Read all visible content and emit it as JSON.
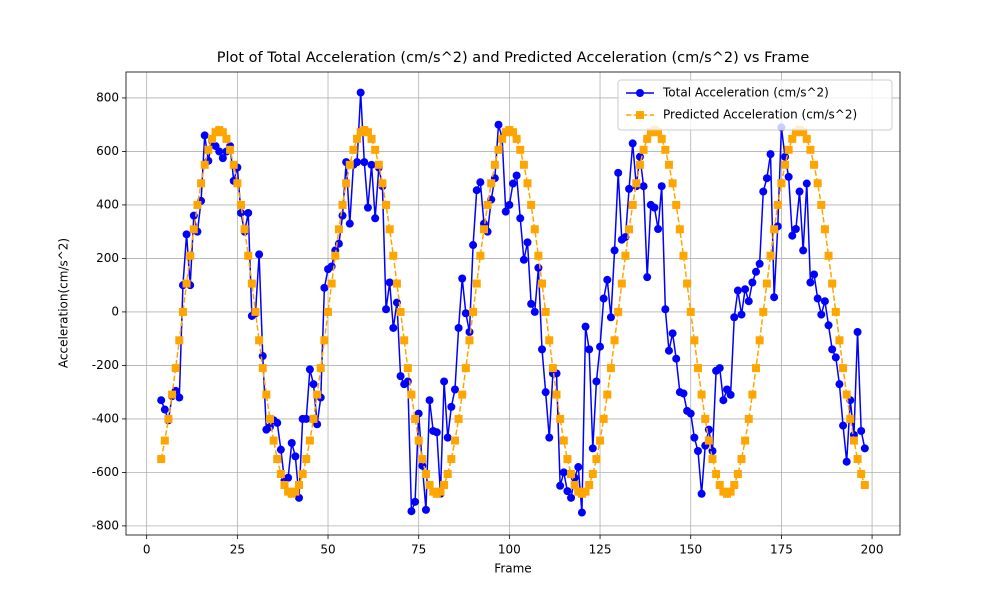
{
  "chart_data": {
    "type": "line",
    "title": "Plot of Total Acceleration (cm/s^2) and Predicted Acceleration (cm/s^2) vs Frame",
    "x_label": "Frame",
    "y_label": "Acceleration(cm/s^2)",
    "x": [
      4,
      5,
      6,
      7,
      8,
      9,
      10,
      11,
      12,
      13,
      14,
      15,
      16,
      17,
      18,
      19,
      20,
      21,
      22,
      23,
      24,
      25,
      26,
      27,
      28,
      29,
      30,
      31,
      32,
      33,
      34,
      35,
      36,
      37,
      38,
      39,
      40,
      41,
      42,
      43,
      44,
      45,
      46,
      47,
      48,
      49,
      50,
      51,
      52,
      53,
      54,
      55,
      56,
      57,
      58,
      59,
      60,
      61,
      62,
      63,
      64,
      65,
      66,
      67,
      68,
      69,
      70,
      71,
      72,
      73,
      74,
      75,
      76,
      77,
      78,
      79,
      80,
      81,
      82,
      83,
      84,
      85,
      86,
      87,
      88,
      89,
      90,
      91,
      92,
      93,
      94,
      95,
      96,
      97,
      98,
      99,
      100,
      101,
      102,
      103,
      104,
      105,
      106,
      107,
      108,
      109,
      110,
      111,
      112,
      113,
      114,
      115,
      116,
      117,
      118,
      119,
      120,
      121,
      122,
      123,
      124,
      125,
      126,
      127,
      128,
      129,
      130,
      131,
      132,
      133,
      134,
      135,
      136,
      137,
      138,
      139,
      140,
      141,
      142,
      143,
      144,
      145,
      146,
      147,
      148,
      149,
      150,
      151,
      152,
      153,
      154,
      155,
      156,
      157,
      158,
      159,
      160,
      161,
      162,
      163,
      164,
      165,
      166,
      167,
      168,
      169,
      170,
      171,
      172,
      173,
      174,
      175,
      176,
      177,
      178,
      179,
      180,
      181,
      182,
      183,
      184,
      185,
      186,
      187,
      188,
      189,
      190,
      191,
      192,
      193,
      194,
      195,
      196,
      197,
      198
    ],
    "series": [
      {
        "name": "Total Acceleration (cm/s^2)",
        "color": "#0000ff",
        "linestyle": "solid",
        "marker": "circle",
        "values": [
          -330,
          -365,
          -405,
          -315,
          -295,
          -320,
          100,
          290,
          100,
          360,
          300,
          415,
          660,
          565,
          640,
          620,
          600,
          575,
          600,
          620,
          490,
          540,
          370,
          300,
          370,
          -15,
          -5,
          215,
          -165,
          -440,
          -430,
          -405,
          -415,
          -515,
          -630,
          -620,
          -490,
          -540,
          -695,
          -400,
          -400,
          -215,
          -270,
          -420,
          -320,
          90,
          160,
          170,
          230,
          255,
          360,
          560,
          330,
          550,
          560,
          820,
          560,
          390,
          550,
          350,
          540,
          470,
          10,
          110,
          -60,
          35,
          -240,
          -270,
          -260,
          -745,
          -710,
          -380,
          -575,
          -740,
          -330,
          -445,
          -450,
          -680,
          -260,
          -470,
          -355,
          -290,
          -60,
          125,
          -5,
          -75,
          250,
          455,
          485,
          330,
          300,
          420,
          500,
          700,
          650,
          375,
          400,
          480,
          510,
          350,
          195,
          260,
          30,
          0,
          165,
          -140,
          -300,
          -470,
          -230,
          -230,
          -650,
          -600,
          -670,
          -695,
          -620,
          -580,
          -750,
          -55,
          -140,
          -510,
          -260,
          -130,
          50,
          120,
          -20,
          230,
          520,
          270,
          280,
          460,
          630,
          470,
          580,
          470,
          130,
          400,
          390,
          310,
          470,
          10,
          -145,
          -80,
          -175,
          -300,
          -305,
          -370,
          -380,
          -470,
          -520,
          -680,
          -500,
          -440,
          -520,
          -220,
          -210,
          -330,
          -290,
          -310,
          -20,
          80,
          -10,
          85,
          40,
          110,
          150,
          180,
          450,
          500,
          590,
          55,
          320,
          690,
          580,
          505,
          285,
          310,
          450,
          230,
          480,
          110,
          140,
          50,
          -10,
          40,
          -50,
          -140,
          -170,
          -270,
          -425,
          -560,
          -330,
          -460,
          -75,
          -445,
          -510
        ]
      },
      {
        "name": "Predicted Acceleration (cm/s^2)",
        "color": "#ffa500",
        "linestyle": "dashed",
        "marker": "square",
        "values": [
          -550,
          -481,
          -400,
          -309,
          -210,
          -106,
          0,
          106,
          210,
          309,
          400,
          481,
          550,
          606,
          647,
          672,
          680,
          672,
          647,
          606,
          550,
          481,
          400,
          309,
          210,
          106,
          0,
          -106,
          -210,
          -309,
          -400,
          -481,
          -550,
          -606,
          -647,
          -672,
          -680,
          -672,
          -647,
          -606,
          -550,
          -481,
          -400,
          -309,
          -210,
          -106,
          0,
          106,
          210,
          309,
          400,
          481,
          550,
          606,
          647,
          672,
          680,
          672,
          647,
          606,
          550,
          481,
          400,
          309,
          210,
          106,
          0,
          -106,
          -210,
          -309,
          -400,
          -481,
          -550,
          -606,
          -647,
          -672,
          -680,
          -672,
          -647,
          -606,
          -550,
          -481,
          -400,
          -309,
          -210,
          -106,
          0,
          106,
          210,
          309,
          400,
          481,
          550,
          606,
          647,
          672,
          680,
          672,
          647,
          606,
          550,
          481,
          400,
          309,
          210,
          106,
          0,
          -106,
          -210,
          -309,
          -400,
          -481,
          -550,
          -606,
          -647,
          -672,
          -680,
          -672,
          -647,
          -606,
          -550,
          -481,
          -400,
          -309,
          -210,
          -106,
          0,
          106,
          210,
          309,
          400,
          481,
          550,
          606,
          647,
          672,
          680,
          672,
          647,
          606,
          550,
          481,
          400,
          309,
          210,
          106,
          0,
          -106,
          -210,
          -309,
          -400,
          -481,
          -550,
          -606,
          -647,
          -672,
          -680,
          -672,
          -647,
          -606,
          -550,
          -481,
          -400,
          -309,
          -210,
          -106,
          0,
          106,
          210,
          309,
          400,
          481,
          550,
          606,
          647,
          672,
          680,
          672,
          647,
          606,
          550,
          481,
          400,
          309,
          210,
          106,
          0,
          -106,
          -210,
          -309,
          -400,
          -481,
          -550,
          -606,
          -647
        ]
      }
    ],
    "xlim": [
      -5.7,
      207.7
    ],
    "ylim": [
      -834,
      897
    ],
    "xticks": [
      0,
      25,
      50,
      75,
      100,
      125,
      150,
      175,
      200
    ],
    "yticks": [
      -800,
      -600,
      -400,
      -200,
      0,
      200,
      400,
      600,
      800
    ],
    "grid": true,
    "legend": "upper right"
  }
}
